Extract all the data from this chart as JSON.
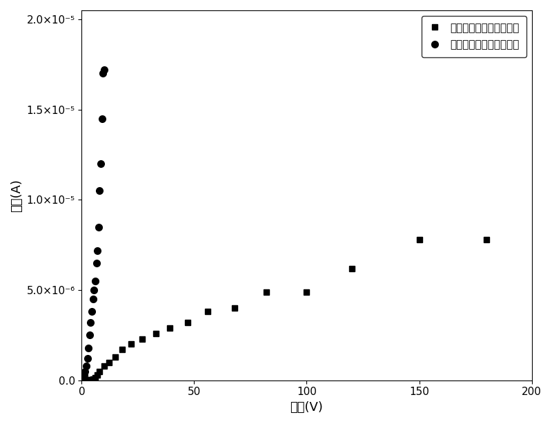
{
  "xlabel": "电压(V)",
  "ylabel": "电流(A)",
  "xlim": [
    0,
    200
  ],
  "ylim": [
    0,
    2.05e-05
  ],
  "yticks": [
    0.0,
    5e-06,
    1e-05,
    1.5e-05,
    2e-05
  ],
  "xticks": [
    0,
    50,
    100,
    150,
    200
  ],
  "legend1": "用本发明工艺制备的样品",
  "legend2": "使用原有工艺制备的样品",
  "s1x": [
    1,
    2,
    3,
    4,
    5,
    6,
    7,
    8,
    10,
    12,
    15,
    18,
    22,
    27,
    33,
    39,
    47,
    56,
    68,
    82,
    100,
    120,
    150,
    180
  ],
  "s1y": [
    5e-09,
    1e-08,
    2e-08,
    4e-08,
    8e-08,
    1.5e-07,
    3e-07,
    5e-07,
    8e-07,
    1e-06,
    1.3e-06,
    1.7e-06,
    2e-06,
    2.3e-06,
    2.6e-06,
    2.9e-06,
    3.2e-06,
    3.8e-06,
    4e-06,
    4.9e-06,
    4.9e-06,
    6.2e-06,
    7.8e-06,
    7.8e-06
  ],
  "s2x": [
    0.5,
    1.0,
    1.5,
    2.0,
    2.5,
    3.0,
    3.5,
    4.0,
    4.5,
    5.0,
    5.5,
    6.0,
    6.5,
    7.0,
    7.5,
    8.0,
    8.5,
    9.0,
    9.5,
    10.0
  ],
  "s2y": [
    1.5e-07,
    3e-07,
    5e-07,
    8e-07,
    1.2e-06,
    1.8e-06,
    2.5e-06,
    3.2e-06,
    3.8e-06,
    4.5e-06,
    5e-06,
    5.5e-06,
    6.5e-06,
    7.2e-06,
    8.5e-06,
    1.05e-05,
    1.2e-05,
    1.45e-05,
    1.7e-05,
    1.72e-05
  ],
  "bg_color": "#ffffff",
  "label_fontsize": 13,
  "tick_fontsize": 11,
  "legend_fontsize": 11
}
